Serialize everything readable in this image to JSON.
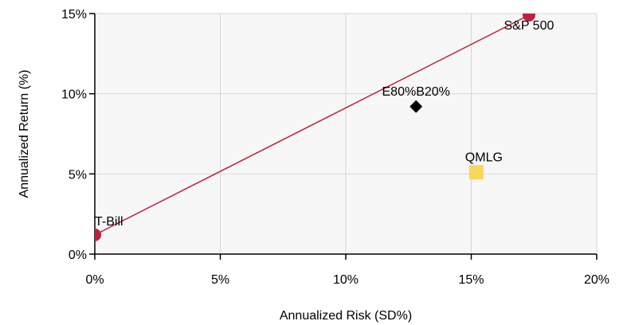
{
  "chart_data": {
    "type": "scatter",
    "title": "",
    "xlabel": "Annualized Risk (SD%)",
    "ylabel": "Annualized Return (%)",
    "xlim": [
      0,
      20
    ],
    "ylim": [
      0,
      15
    ],
    "x_ticks": [
      0,
      5,
      10,
      15,
      20
    ],
    "y_ticks": [
      0,
      5,
      10,
      15
    ],
    "x_tick_labels": [
      "0%",
      "5%",
      "10%",
      "15%",
      "20%"
    ],
    "y_tick_labels": [
      "0%",
      "5%",
      "10%",
      "15%"
    ],
    "grid": true,
    "points": [
      {
        "label": "T-Bill",
        "x": 0.0,
        "y": 1.2,
        "marker": "circle",
        "color": "#c0203e"
      },
      {
        "label": "S&P 500",
        "x": 17.3,
        "y": 14.9,
        "marker": "circle",
        "color": "#c0203e"
      },
      {
        "label": "E80%B20%",
        "x": 12.8,
        "y": 9.2,
        "marker": "diamond",
        "color": "#000000"
      },
      {
        "label": "QMLG",
        "x": 15.2,
        "y": 5.1,
        "marker": "square",
        "color": "#f9d65c"
      }
    ],
    "line": {
      "from": [
        0.0,
        1.2
      ],
      "to": [
        17.3,
        14.9
      ],
      "color": "#c0203e"
    }
  },
  "colors": {
    "plot_background": "#f7f7f7",
    "grid": "#d6d6d6",
    "axis": "#000000"
  }
}
